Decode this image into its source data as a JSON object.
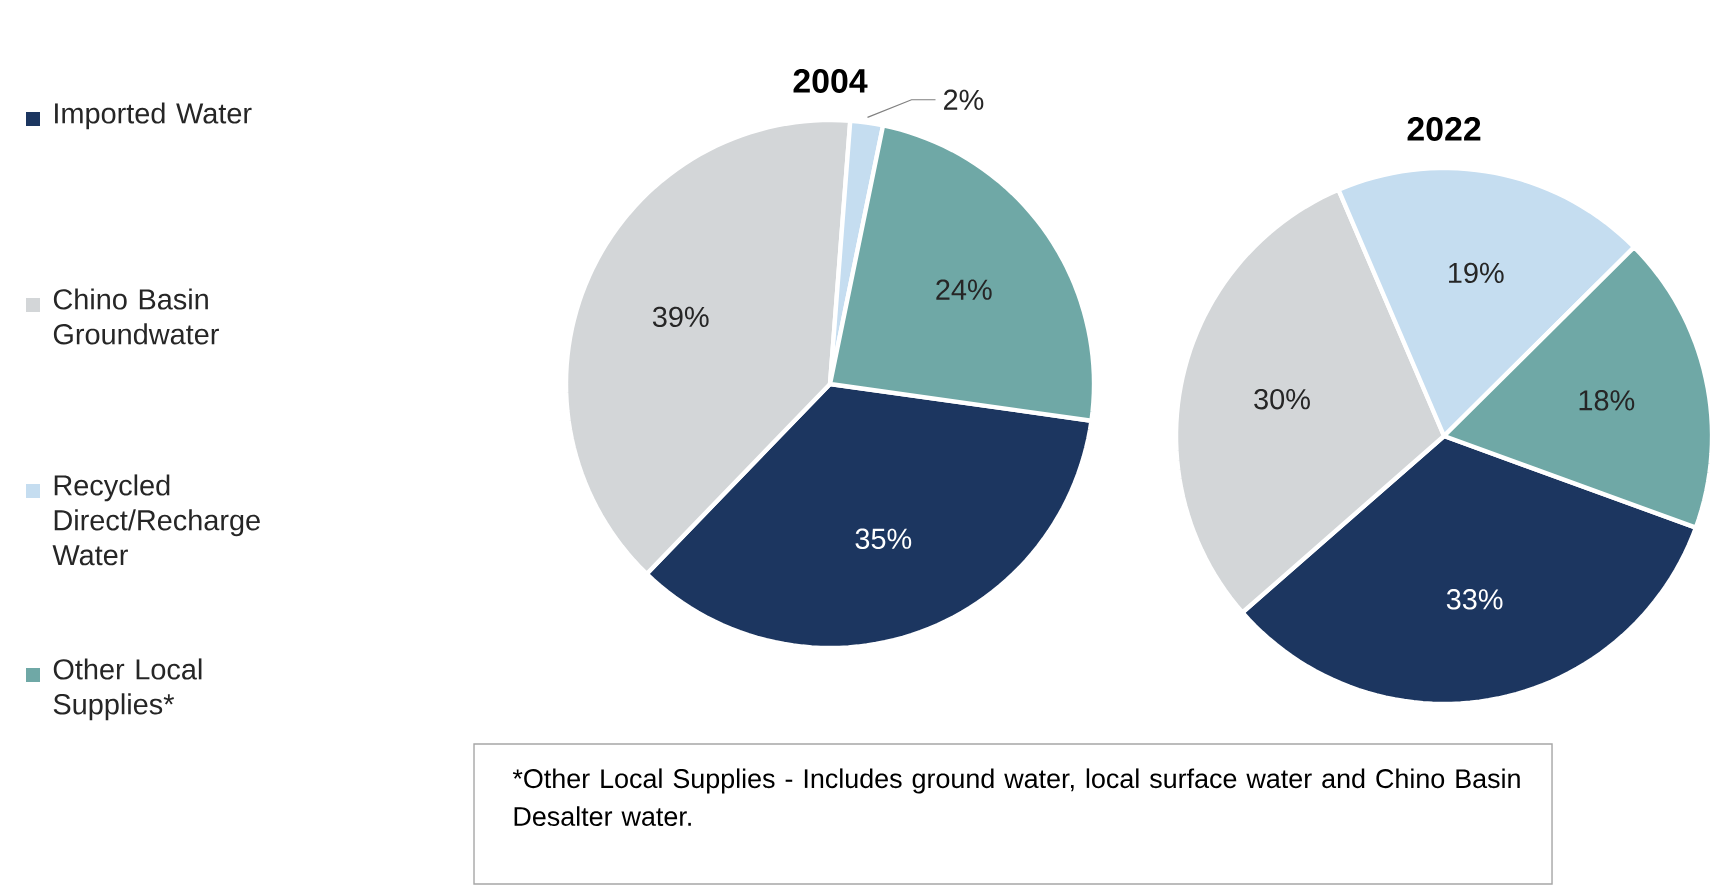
{
  "chart_data": [
    {
      "type": "pie",
      "title": "2004",
      "categories": [
        "Imported Water",
        "Chino Basin Groundwater",
        "Recycled Direct/Recharge Water",
        "Other Local Supplies*"
      ],
      "values": [
        35,
        39,
        2,
        24
      ],
      "colors": [
        "#1c3660",
        "#d3d6d8",
        "#c5ddf0",
        "#6fa8a6"
      ],
      "value_labels": [
        "35%",
        "39%",
        "2%",
        "24%"
      ],
      "legend": "left",
      "annotations": [
        "*Other Local Supplies - Includes ground water, local surface water and Chino Basin Desalter water."
      ]
    },
    {
      "type": "pie",
      "title": "2022",
      "categories": [
        null,
        null,
        null,
        null
      ],
      "values": [
        33,
        30,
        19,
        18
      ],
      "colors": [
        "#1c3660",
        "#d3d6d8",
        "#c5ddf0",
        "#6fa8a6"
      ],
      "value_labels": [
        "33%",
        "30%",
        "19%",
        "18%"
      ],
      "legend": false
    }
  ]
}
